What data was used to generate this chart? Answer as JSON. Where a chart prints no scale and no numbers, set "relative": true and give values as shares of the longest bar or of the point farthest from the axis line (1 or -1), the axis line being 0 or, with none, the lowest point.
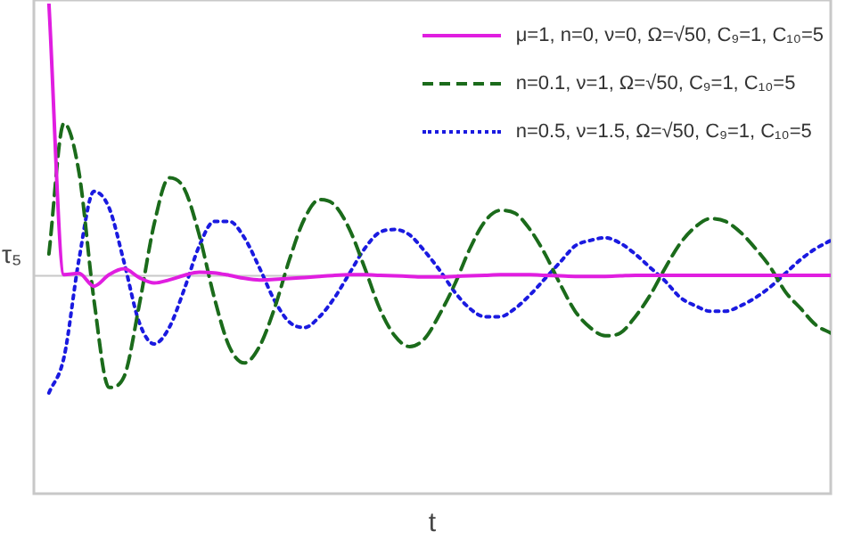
{
  "chart_data": {
    "type": "line",
    "relative": true,
    "xlabel": "t",
    "ylabel": "τ₅",
    "legend": "top right",
    "categories": [
      null,
      null,
      null,
      null,
      null,
      null,
      null,
      null,
      null,
      null,
      null,
      null,
      null,
      null,
      null,
      null,
      null,
      null,
      null,
      null,
      null,
      null,
      null,
      null,
      null,
      null,
      null,
      null,
      null,
      null,
      null,
      null,
      null,
      null,
      null,
      null,
      null,
      null,
      null,
      null,
      null,
      null,
      null,
      null,
      null,
      null,
      null,
      null,
      null,
      null,
      null,
      null,
      null,
      null
    ],
    "series": [
      {
        "name": "μ=1, n=0, ν=0, Ω=√50, C₉=1, C₁₀=5",
        "color": "#e01ee0",
        "line_style": "solid",
        "values": [
          null,
          1,
          0.004,
          0.009,
          -0.038,
          0.004,
          0.026,
          -0.006,
          -0.026,
          -0.015,
          0.002,
          0.013,
          0.011,
          0.002,
          -0.009,
          -0.015,
          -0.013,
          -0.01,
          -0.006,
          -0.002,
          0.002,
          0.004,
          0.004,
          0.002,
          0,
          -0.002,
          -0.004,
          -0.004,
          -0.002,
          0,
          0.002,
          0.004,
          0.004,
          0.004,
          0.002,
          0,
          -0.002,
          -0.002,
          -0.002,
          0,
          0.002,
          0.002,
          0.002,
          0.002,
          0.002,
          0.002,
          0.002,
          0.002,
          0.002,
          0.002,
          0.002,
          0.002,
          0.002,
          0.002
        ]
      },
      {
        "name": "n=0.1, ν=1, Ω=√50, C₉=1, C₁₀=5",
        "color": "#1b6b1b",
        "line_style": "dashed",
        "values": [
          null,
          0.08,
          0.56,
          0.38,
          -0.09,
          -0.41,
          -0.37,
          -0.11,
          0.19,
          0.36,
          0.32,
          0.15,
          -0.08,
          -0.26,
          -0.32,
          -0.26,
          -0.12,
          0.06,
          0.21,
          0.28,
          0.26,
          0.17,
          0.03,
          -0.12,
          -0.22,
          -0.26,
          -0.23,
          -0.14,
          -0.03,
          0.1,
          0.2,
          0.24,
          0.23,
          0.17,
          0.08,
          -0.03,
          -0.13,
          -0.19,
          -0.22,
          -0.21,
          -0.15,
          -0.07,
          0.03,
          0.12,
          0.18,
          0.21,
          0.2,
          0.16,
          0.1,
          0.03,
          -0.06,
          -0.12,
          -0.18,
          -0.21
        ]
      },
      {
        "name": "n=0.5, ν=1.5, Ω=√50, C₉=1, C₁₀=5",
        "color": "#1a1ae0",
        "line_style": "dotted",
        "values": [
          null,
          -0.43,
          -0.3,
          0.06,
          0.31,
          0.25,
          0.05,
          -0.17,
          -0.25,
          -0.19,
          -0.05,
          0.11,
          0.2,
          0.2,
          0.14,
          0.03,
          -0.09,
          -0.17,
          -0.19,
          -0.15,
          -0.08,
          0.01,
          0.1,
          0.16,
          0.17,
          0.15,
          0.09,
          0.02,
          -0.06,
          -0.12,
          -0.15,
          -0.15,
          -0.12,
          -0.07,
          -0.01,
          0.05,
          0.11,
          0.13,
          0.14,
          0.12,
          0.08,
          0.03,
          -0.02,
          -0.08,
          -0.11,
          -0.13,
          -0.13,
          -0.11,
          -0.08,
          -0.04,
          0.01,
          0.06,
          0.1,
          0.13
        ]
      }
    ]
  }
}
